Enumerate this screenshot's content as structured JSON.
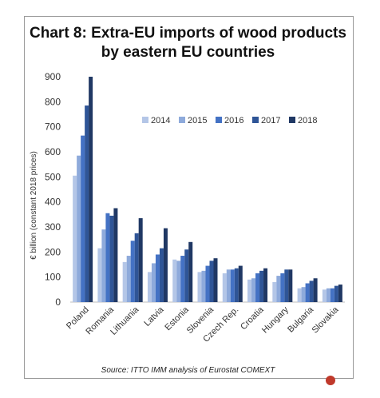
{
  "chart_data": {
    "type": "bar",
    "title": "Chart 8: Extra-EU imports of wood products by eastern EU countries",
    "source": "Source: ITTO IMM analysis of Eurostat COMEXT",
    "ylabel": "€ billion (constant 2018 prices)",
    "ylim": [
      0,
      900
    ],
    "yticks": [
      0,
      100,
      200,
      300,
      400,
      500,
      600,
      700,
      800,
      900
    ],
    "grid": false,
    "legend_position": "top-right",
    "categories": [
      "Poland",
      "Romania",
      "Lithuania",
      "Latvia",
      "Estonia",
      "Slovenia",
      "Czech Rep.",
      "Croatia",
      "Hungary",
      "Bulgaria",
      "Slovakia"
    ],
    "series": [
      {
        "name": "2014",
        "color": "#b4c6e7",
        "values": [
          505,
          215,
          160,
          120,
          170,
          120,
          115,
          90,
          80,
          55,
          50
        ]
      },
      {
        "name": "2015",
        "color": "#8eaadb",
        "values": [
          585,
          290,
          185,
          155,
          165,
          125,
          130,
          95,
          105,
          60,
          55
        ]
      },
      {
        "name": "2016",
        "color": "#4472c4",
        "values": [
          665,
          355,
          245,
          190,
          185,
          145,
          130,
          115,
          115,
          75,
          55
        ]
      },
      {
        "name": "2017",
        "color": "#2f5597",
        "values": [
          785,
          345,
          275,
          215,
          210,
          165,
          135,
          125,
          130,
          85,
          65
        ]
      },
      {
        "name": "2018",
        "color": "#203864",
        "values": [
          900,
          375,
          335,
          295,
          240,
          175,
          145,
          135,
          130,
          95,
          70
        ]
      }
    ]
  }
}
